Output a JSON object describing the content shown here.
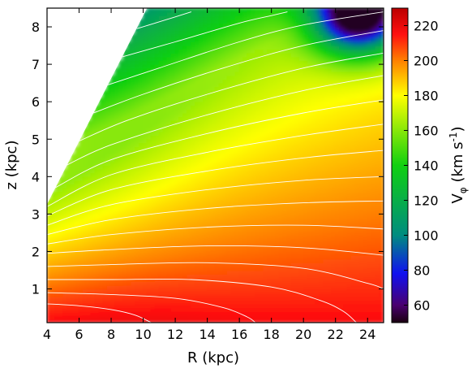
{
  "chart_data": {
    "type": "heatmap",
    "title": "",
    "xlabel": "R (kpc)",
    "ylabel": "z (kpc)",
    "colorbar_label": "V_φ (km s^-1)",
    "colorbar_label_parts": {
      "base": "V",
      "sub": "φ",
      "unit_open": " (km s",
      "sup": "-1",
      "unit_close": ")"
    },
    "xlim": [
      4,
      25
    ],
    "ylim": [
      0.1,
      8.5
    ],
    "x_ticks": [
      4,
      6,
      8,
      10,
      12,
      14,
      16,
      18,
      20,
      22,
      24
    ],
    "x_tick_labels": [
      "4",
      "6",
      "8",
      "10",
      "12",
      "14",
      "16",
      "18",
      "20",
      "22",
      "24"
    ],
    "y_ticks": [
      1,
      2,
      3,
      4,
      5,
      6,
      7,
      8
    ],
    "y_tick_labels": [
      "1",
      "2",
      "3",
      "4",
      "5",
      "6",
      "7",
      "8"
    ],
    "colorbar_range": [
      50,
      230
    ],
    "colorbar_ticks": [
      60,
      80,
      100,
      120,
      140,
      160,
      180,
      200,
      220
    ],
    "colorbar_tick_labels": [
      "60",
      "80",
      "100",
      "120",
      "140",
      "160",
      "180",
      "200",
      "220"
    ],
    "colormap": [
      {
        "value": 50,
        "color": "#1a0010"
      },
      {
        "value": 60,
        "color": "#4a0070"
      },
      {
        "value": 78,
        "color": "#1010f0"
      },
      {
        "value": 100,
        "color": "#008c80"
      },
      {
        "value": 140,
        "color": "#10d010"
      },
      {
        "value": 180,
        "color": "#ffff00"
      },
      {
        "value": 200,
        "color": "#ff8000"
      },
      {
        "value": 215,
        "color": "#ff1010"
      },
      {
        "value": 230,
        "color": "#bb0000"
      }
    ],
    "masked_region": {
      "description": "no data above z = 0.84*R - 0.1",
      "slope": 0.84,
      "intercept": -0.1
    },
    "contour_lines": [
      {
        "points": [
          [
            4,
            0.6
          ],
          [
            6,
            0.55
          ],
          [
            8,
            0.45
          ],
          [
            9.5,
            0.3
          ],
          [
            10.5,
            0.1
          ]
        ]
      },
      {
        "points": [
          [
            4,
            0.9
          ],
          [
            8,
            0.85
          ],
          [
            12,
            0.75
          ],
          [
            15,
            0.5
          ],
          [
            16.5,
            0.25
          ],
          [
            17,
            0.1
          ]
        ]
      },
      {
        "points": [
          [
            4,
            1.25
          ],
          [
            8,
            1.25
          ],
          [
            13,
            1.25
          ],
          [
            18,
            1.05
          ],
          [
            21,
            0.7
          ],
          [
            22.5,
            0.4
          ],
          [
            23.3,
            0.1
          ]
        ]
      },
      {
        "points": [
          [
            4,
            1.6
          ],
          [
            8,
            1.65
          ],
          [
            14,
            1.7
          ],
          [
            20,
            1.55
          ],
          [
            24,
            1.15
          ],
          [
            25,
            1.0
          ]
        ]
      },
      {
        "points": [
          [
            4,
            1.95
          ],
          [
            8,
            2.05
          ],
          [
            14,
            2.15
          ],
          [
            20,
            2.1
          ],
          [
            25,
            1.9
          ]
        ]
      },
      {
        "points": [
          [
            4,
            2.2
          ],
          [
            8,
            2.45
          ],
          [
            14,
            2.65
          ],
          [
            20,
            2.7
          ],
          [
            25,
            2.6
          ]
        ]
      },
      {
        "points": [
          [
            4,
            2.45
          ],
          [
            8,
            2.85
          ],
          [
            14,
            3.15
          ],
          [
            20,
            3.3
          ],
          [
            25,
            3.35
          ]
        ]
      },
      {
        "points": [
          [
            4,
            2.7
          ],
          [
            8,
            3.25
          ],
          [
            14,
            3.65
          ],
          [
            20,
            3.9
          ],
          [
            25,
            4.0
          ]
        ]
      },
      {
        "points": [
          [
            4,
            2.95
          ],
          [
            8,
            3.65
          ],
          [
            14,
            4.15
          ],
          [
            20,
            4.5
          ],
          [
            25,
            4.7
          ]
        ]
      },
      {
        "points": [
          [
            4,
            3.2
          ],
          [
            8,
            4.05
          ],
          [
            14,
            4.65
          ],
          [
            20,
            5.1
          ],
          [
            25,
            5.4
          ]
        ]
      },
      {
        "points": [
          [
            4.5,
            3.7
          ],
          [
            8,
            4.45
          ],
          [
            14,
            5.15
          ],
          [
            20,
            5.7
          ],
          [
            25,
            6.05
          ]
        ]
      },
      {
        "points": [
          [
            5.2,
            4.3
          ],
          [
            8,
            4.85
          ],
          [
            14,
            5.65
          ],
          [
            20,
            6.3
          ],
          [
            25,
            6.7
          ]
        ]
      },
      {
        "points": [
          [
            6.0,
            4.95
          ],
          [
            9,
            5.5
          ],
          [
            14,
            6.2
          ],
          [
            20,
            6.9
          ],
          [
            25,
            7.3
          ]
        ]
      },
      {
        "points": [
          [
            6.9,
            5.7
          ],
          [
            10,
            6.2
          ],
          [
            15,
            6.9
          ],
          [
            20,
            7.5
          ],
          [
            25,
            7.9
          ]
        ]
      },
      {
        "points": [
          [
            7.8,
            6.45
          ],
          [
            11,
            6.9
          ],
          [
            16,
            7.6
          ],
          [
            20,
            8.05
          ],
          [
            25,
            8.4
          ]
        ]
      },
      {
        "points": [
          [
            8.7,
            7.2
          ],
          [
            12,
            7.6
          ],
          [
            16,
            8.1
          ],
          [
            18,
            8.3
          ],
          [
            19,
            8.4
          ]
        ]
      },
      {
        "points": [
          [
            9.6,
            7.95
          ],
          [
            11.5,
            8.2
          ],
          [
            13.0,
            8.4
          ]
        ]
      }
    ]
  }
}
